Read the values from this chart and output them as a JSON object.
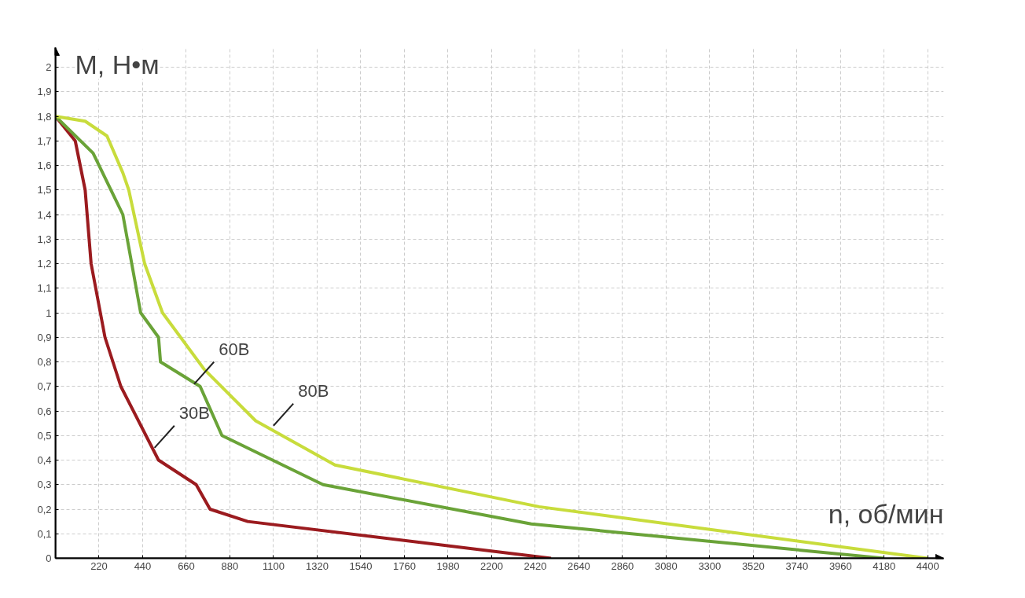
{
  "chart_data": {
    "type": "line",
    "xlabel": "n, об/мин",
    "ylabel": "М, Н•м",
    "xlim": [
      0,
      4480
    ],
    "ylim": [
      0,
      2.08
    ],
    "xticks": [
      220,
      440,
      660,
      880,
      1100,
      1320,
      1540,
      1760,
      1980,
      2200,
      2420,
      2640,
      2860,
      3080,
      3300,
      3520,
      3740,
      3960,
      4180,
      4400
    ],
    "yticks": [
      {
        "value": 0,
        "label": "0"
      },
      {
        "value": 0.1,
        "label": "0,1"
      },
      {
        "value": 0.2,
        "label": "0,2"
      },
      {
        "value": 0.3,
        "label": "0,3"
      },
      {
        "value": 0.4,
        "label": "0,4"
      },
      {
        "value": 0.5,
        "label": "0,5"
      },
      {
        "value": 0.6,
        "label": "0,6"
      },
      {
        "value": 0.7,
        "label": "0,7"
      },
      {
        "value": 0.8,
        "label": "0,8"
      },
      {
        "value": 0.9,
        "label": "0,9"
      },
      1,
      {
        "value": 1.1,
        "label": "1,1"
      },
      {
        "value": 1.2,
        "label": "1,2"
      },
      {
        "value": 1.3,
        "label": "1,3"
      },
      {
        "value": 1.4,
        "label": "1,4"
      },
      {
        "value": 1.5,
        "label": "1,5"
      },
      {
        "value": 1.6,
        "label": "1,6"
      },
      {
        "value": 1.7,
        "label": "1,7"
      },
      {
        "value": 1.8,
        "label": "1,8"
      },
      {
        "value": 1.9,
        "label": "1,9"
      },
      2
    ],
    "grid": true,
    "line_style": "solid",
    "series": [
      {
        "color": "#9b1b1f",
        "x": [
          0,
          100,
          150,
          180,
          250,
          330,
          520,
          710,
          780,
          970,
          2500
        ],
        "values": [
          1.8,
          1.7,
          1.5,
          1.2,
          0.9,
          0.7,
          0.4,
          0.3,
          0.2,
          0.15,
          0
        ]
      },
      {
        "color": "#6aa338",
        "x": [
          0,
          190,
          340,
          430,
          520,
          530,
          730,
          840,
          1350,
          2400,
          4180
        ],
        "values": [
          1.8,
          1.65,
          1.4,
          1.0,
          0.9,
          0.8,
          0.7,
          0.5,
          0.3,
          0.14,
          0
        ]
      },
      {
        "color": "#c8dc3c",
        "x": [
          0,
          150,
          260,
          340,
          370,
          450,
          540,
          750,
          1010,
          1410,
          2440,
          4400
        ],
        "values": [
          1.8,
          1.78,
          1.72,
          1.57,
          1.5,
          1.2,
          1.0,
          0.77,
          0.56,
          0.38,
          0.21,
          0
        ]
      }
    ],
    "annotations": [
      {
        "text": "30В",
        "x": 500,
        "y": 0.45
      },
      {
        "text": "60В",
        "x": 700,
        "y": 0.71
      },
      {
        "text": "80В",
        "x": 1100,
        "y": 0.54
      }
    ]
  }
}
